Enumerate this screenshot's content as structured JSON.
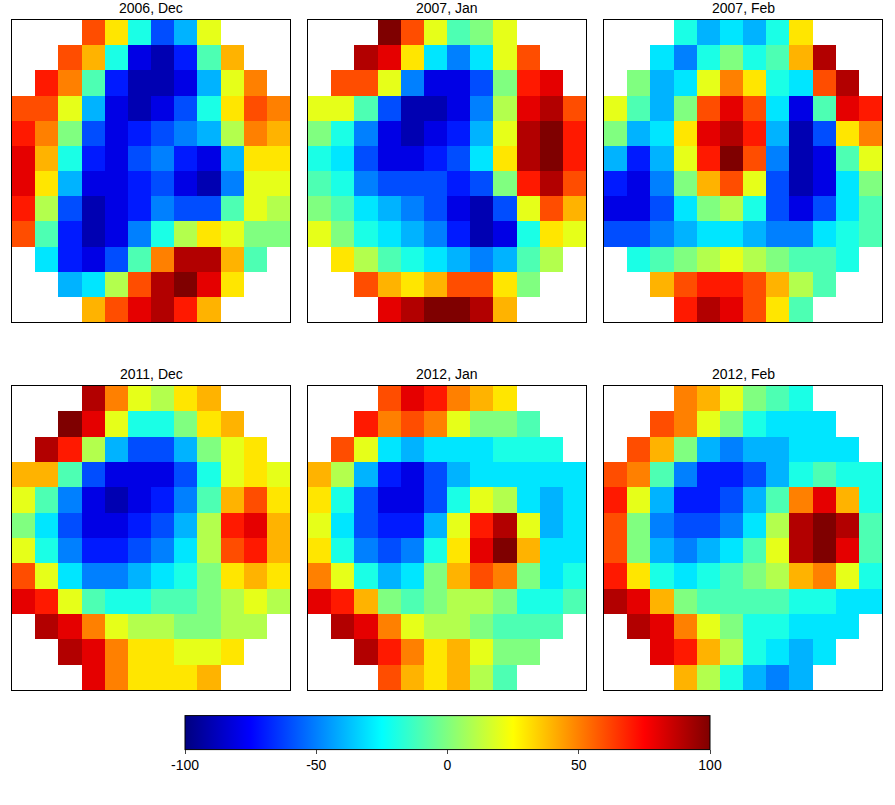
{
  "chart_data": {
    "type": "heatmap",
    "tick_labels": false,
    "colorbar": {
      "range": [
        -100,
        100
      ],
      "ticks": [
        -100,
        -50,
        0,
        50,
        100
      ]
    },
    "panels": [
      {
        "title": "2006, Dec",
        "z": [
          [
            null,
            null,
            null,
            60,
            30,
            -20,
            -60,
            -40,
            20,
            null,
            null,
            null
          ],
          [
            null,
            null,
            60,
            40,
            -20,
            -80,
            -90,
            -70,
            -10,
            40,
            null,
            null
          ],
          [
            null,
            70,
            50,
            -10,
            -70,
            -90,
            -90,
            -80,
            -40,
            20,
            50,
            null
          ],
          [
            60,
            60,
            20,
            -40,
            -80,
            -90,
            -80,
            -60,
            -20,
            30,
            60,
            50
          ],
          [
            70,
            50,
            0,
            -60,
            -80,
            -70,
            -60,
            -50,
            -40,
            10,
            50,
            40
          ],
          [
            80,
            40,
            -20,
            -70,
            -80,
            -60,
            -50,
            -70,
            -80,
            -40,
            30,
            30
          ],
          [
            80,
            30,
            -40,
            -80,
            -80,
            -70,
            -60,
            -80,
            -90,
            -50,
            20,
            20
          ],
          [
            70,
            10,
            -60,
            -90,
            -80,
            -70,
            -50,
            -60,
            -60,
            -10,
            20,
            10
          ],
          [
            60,
            -10,
            -70,
            -90,
            -80,
            -50,
            -20,
            10,
            30,
            20,
            0,
            0
          ],
          [
            null,
            -30,
            -70,
            -80,
            -60,
            -10,
            50,
            90,
            90,
            40,
            -10,
            null
          ],
          [
            null,
            null,
            -40,
            -30,
            10,
            60,
            90,
            100,
            80,
            30,
            null,
            null
          ],
          [
            null,
            null,
            null,
            40,
            60,
            80,
            90,
            70,
            40,
            null,
            null,
            null
          ]
        ]
      },
      {
        "title": "2007, Jan",
        "z": [
          [
            null,
            null,
            null,
            100,
            60,
            20,
            -10,
            0,
            20,
            null,
            null,
            null
          ],
          [
            null,
            null,
            90,
            80,
            30,
            -30,
            -50,
            -30,
            20,
            60,
            null,
            null
          ],
          [
            null,
            60,
            60,
            20,
            -50,
            -80,
            -80,
            -60,
            0,
            70,
            80,
            null
          ],
          [
            20,
            20,
            -10,
            -60,
            -90,
            -90,
            -80,
            -50,
            10,
            80,
            90,
            60
          ],
          [
            0,
            -20,
            -50,
            -80,
            -90,
            -80,
            -70,
            -40,
            20,
            90,
            100,
            70
          ],
          [
            -20,
            -30,
            -60,
            -80,
            -80,
            -70,
            -60,
            -30,
            30,
            90,
            100,
            70
          ],
          [
            -10,
            -20,
            -50,
            -60,
            -60,
            -60,
            -70,
            -60,
            0,
            70,
            90,
            60
          ],
          [
            0,
            -10,
            -30,
            -40,
            -50,
            -60,
            -80,
            -90,
            -60,
            20,
            60,
            40
          ],
          [
            20,
            0,
            -20,
            -30,
            -40,
            -50,
            -70,
            -90,
            -80,
            -20,
            30,
            20
          ],
          [
            null,
            30,
            10,
            -10,
            -20,
            -30,
            -40,
            -50,
            -40,
            -10,
            10,
            null
          ],
          [
            null,
            null,
            60,
            40,
            30,
            40,
            60,
            60,
            30,
            0,
            null,
            null
          ],
          [
            null,
            null,
            null,
            80,
            90,
            100,
            100,
            90,
            40,
            null,
            null,
            null
          ]
        ]
      },
      {
        "title": "2007, Feb",
        "z": [
          [
            null,
            null,
            null,
            -20,
            -40,
            -30,
            -40,
            -20,
            30,
            null,
            null,
            null
          ],
          [
            null,
            null,
            -30,
            -50,
            -20,
            0,
            -20,
            -10,
            40,
            90,
            null,
            null
          ],
          [
            null,
            0,
            -40,
            -30,
            20,
            50,
            30,
            -20,
            -30,
            60,
            90,
            null
          ],
          [
            20,
            -10,
            -40,
            0,
            60,
            80,
            60,
            -30,
            -80,
            -10,
            80,
            70
          ],
          [
            0,
            -40,
            -30,
            30,
            80,
            90,
            70,
            -40,
            -90,
            -60,
            30,
            50
          ],
          [
            -40,
            -70,
            -40,
            20,
            70,
            100,
            60,
            -50,
            -90,
            -80,
            -10,
            20
          ],
          [
            -70,
            -80,
            -50,
            0,
            40,
            60,
            20,
            -60,
            -90,
            -80,
            -30,
            0
          ],
          [
            -80,
            -80,
            -60,
            -30,
            0,
            10,
            -20,
            -60,
            -80,
            -60,
            -30,
            -10
          ],
          [
            -60,
            -60,
            -50,
            -40,
            -30,
            -30,
            -40,
            -50,
            -50,
            -30,
            -20,
            -10
          ],
          [
            null,
            -20,
            -10,
            0,
            10,
            20,
            10,
            0,
            -10,
            -10,
            -20,
            null
          ],
          [
            null,
            null,
            40,
            60,
            70,
            70,
            60,
            40,
            10,
            -10,
            null,
            null
          ],
          [
            null,
            null,
            null,
            70,
            90,
            80,
            60,
            30,
            -10,
            null,
            null,
            null
          ]
        ]
      },
      {
        "title": "2011, Dec",
        "z": [
          [
            null,
            null,
            null,
            90,
            50,
            20,
            10,
            30,
            40,
            null,
            null,
            null
          ],
          [
            null,
            null,
            100,
            80,
            20,
            -20,
            -20,
            0,
            30,
            40,
            null,
            null
          ],
          [
            null,
            90,
            70,
            10,
            -40,
            -60,
            -60,
            -40,
            0,
            20,
            30,
            null
          ],
          [
            40,
            40,
            -10,
            -60,
            -80,
            -80,
            -80,
            -60,
            -20,
            20,
            30,
            20
          ],
          [
            20,
            -10,
            -50,
            -80,
            -90,
            -80,
            -70,
            -50,
            -10,
            40,
            60,
            30
          ],
          [
            0,
            -30,
            -60,
            -80,
            -80,
            -70,
            -60,
            -40,
            10,
            70,
            80,
            40
          ],
          [
            20,
            -20,
            -50,
            -70,
            -70,
            -60,
            -50,
            -30,
            10,
            60,
            70,
            40
          ],
          [
            60,
            20,
            -30,
            -50,
            -50,
            -40,
            -30,
            -20,
            0,
            30,
            40,
            30
          ],
          [
            80,
            70,
            20,
            -10,
            -20,
            -20,
            -10,
            -10,
            0,
            10,
            20,
            10
          ],
          [
            null,
            90,
            80,
            50,
            20,
            10,
            10,
            0,
            0,
            10,
            10,
            null
          ],
          [
            null,
            null,
            90,
            80,
            50,
            30,
            30,
            20,
            20,
            30,
            null,
            null
          ],
          [
            null,
            null,
            null,
            80,
            50,
            30,
            30,
            30,
            40,
            null,
            null,
            null
          ]
        ]
      },
      {
        "title": "2012, Jan",
        "z": [
          [
            null,
            null,
            null,
            60,
            80,
            70,
            50,
            40,
            30,
            null,
            null,
            null
          ],
          [
            null,
            null,
            70,
            50,
            60,
            50,
            20,
            0,
            0,
            -10,
            null,
            null
          ],
          [
            null,
            60,
            20,
            -30,
            -40,
            -30,
            -30,
            -30,
            -20,
            -20,
            -20,
            null
          ],
          [
            40,
            10,
            -40,
            -70,
            -80,
            -60,
            -40,
            -30,
            -30,
            -30,
            -30,
            -30
          ],
          [
            30,
            -20,
            -60,
            -80,
            -80,
            -60,
            -20,
            20,
            10,
            -30,
            -40,
            -30
          ],
          [
            20,
            -30,
            -60,
            -70,
            -70,
            -40,
            20,
            70,
            90,
            20,
            -40,
            -30
          ],
          [
            30,
            -20,
            -50,
            -60,
            -50,
            -20,
            30,
            80,
            100,
            40,
            -30,
            -30
          ],
          [
            50,
            20,
            -20,
            -40,
            -30,
            0,
            40,
            60,
            50,
            0,
            -30,
            -20
          ],
          [
            80,
            70,
            40,
            0,
            -10,
            0,
            10,
            10,
            0,
            -20,
            -20,
            -10
          ],
          [
            null,
            90,
            80,
            50,
            20,
            10,
            10,
            0,
            -10,
            -10,
            -10,
            null
          ],
          [
            null,
            null,
            90,
            70,
            50,
            30,
            40,
            20,
            0,
            0,
            null,
            null
          ],
          [
            null,
            null,
            null,
            60,
            40,
            30,
            40,
            10,
            -10,
            null,
            null,
            null
          ]
        ]
      },
      {
        "title": "2012, Feb",
        "z": [
          [
            null,
            null,
            null,
            50,
            40,
            20,
            0,
            -10,
            -20,
            null,
            null,
            null
          ],
          [
            null,
            null,
            60,
            50,
            20,
            0,
            -20,
            -30,
            -30,
            -30,
            null,
            null
          ],
          [
            null,
            60,
            40,
            0,
            -40,
            -50,
            -40,
            -40,
            -30,
            -30,
            -30,
            null
          ],
          [
            60,
            50,
            -10,
            -50,
            -70,
            -70,
            -60,
            -40,
            -20,
            -10,
            -20,
            -20
          ],
          [
            70,
            20,
            -40,
            -70,
            -70,
            -60,
            -40,
            -10,
            50,
            80,
            40,
            -20
          ],
          [
            60,
            0,
            -50,
            -60,
            -60,
            -50,
            -30,
            10,
            90,
            100,
            90,
            -10
          ],
          [
            60,
            0,
            -40,
            -50,
            -40,
            -30,
            -10,
            20,
            90,
            100,
            80,
            -10
          ],
          [
            70,
            30,
            -20,
            -30,
            -20,
            -10,
            0,
            10,
            40,
            50,
            20,
            -20
          ],
          [
            90,
            80,
            40,
            0,
            -10,
            -10,
            -10,
            -10,
            -20,
            -20,
            -30,
            -30
          ],
          [
            null,
            90,
            80,
            50,
            20,
            0,
            -20,
            -20,
            -30,
            -30,
            -30,
            null
          ],
          [
            null,
            null,
            80,
            70,
            40,
            10,
            -20,
            -30,
            -40,
            -30,
            null,
            null
          ],
          [
            null,
            null,
            null,
            40,
            10,
            -20,
            -40,
            -50,
            -40,
            null,
            null,
            null
          ]
        ]
      }
    ]
  }
}
